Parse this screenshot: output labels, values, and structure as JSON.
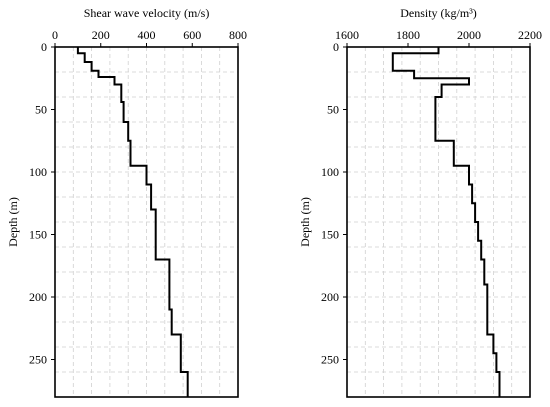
{
  "chart_data": [
    {
      "type": "line",
      "title": "",
      "xlabel": "Shear wave velocity (m/s)",
      "ylabel": "Depth (m)",
      "xlim": [
        0,
        800
      ],
      "ylim": [
        0,
        280
      ],
      "y_inverted": true,
      "x_axis_position": "top",
      "xticks": [
        "0",
        "200",
        "400",
        "600",
        "800"
      ],
      "yticks": [
        "0",
        "50",
        "100",
        "150",
        "200",
        "250"
      ],
      "grid": true,
      "series": [
        {
          "x": [
            100,
            100,
            130,
            130,
            160,
            160,
            190,
            190,
            260,
            260,
            290,
            290,
            300,
            300,
            320,
            320,
            330,
            330,
            400,
            400,
            420,
            420,
            440,
            440,
            500,
            500,
            510,
            510,
            550,
            550,
            580,
            580
          ],
          "y": [
            0,
            5,
            5,
            12,
            12,
            19,
            19,
            24,
            24,
            30,
            30,
            44,
            44,
            60,
            60,
            75,
            75,
            95,
            95,
            110,
            110,
            130,
            130,
            170,
            170,
            210,
            210,
            230,
            230,
            260,
            260,
            280
          ]
        }
      ]
    },
    {
      "type": "line",
      "title": "",
      "xlabel": "Density (kg/m³)",
      "ylabel": "Depth (m)",
      "xlim": [
        1600,
        2200
      ],
      "ylim": [
        0,
        280
      ],
      "y_inverted": true,
      "x_axis_position": "top",
      "xticks": [
        "1600",
        "1800",
        "2000",
        "2200"
      ],
      "yticks": [
        "0",
        "50",
        "100",
        "150",
        "200",
        "250"
      ],
      "grid": true,
      "series": [
        {
          "x": [
            1900,
            1900,
            1750,
            1750,
            1820,
            1820,
            2000,
            2000,
            1910,
            1910,
            1890,
            1890,
            1890,
            1890,
            1950,
            1950,
            2000,
            2000,
            2010,
            2010,
            2020,
            2020,
            2030,
            2030,
            2040,
            2040,
            2050,
            2050,
            2060,
            2060,
            2080,
            2080,
            2090,
            2090,
            2100,
            2100
          ],
          "y": [
            0,
            5,
            5,
            19,
            19,
            25,
            25,
            30,
            30,
            40,
            40,
            50,
            50,
            75,
            75,
            95,
            95,
            110,
            110,
            125,
            125,
            140,
            140,
            155,
            155,
            170,
            170,
            190,
            190,
            230,
            230,
            245,
            245,
            260,
            260,
            280
          ]
        }
      ]
    }
  ]
}
